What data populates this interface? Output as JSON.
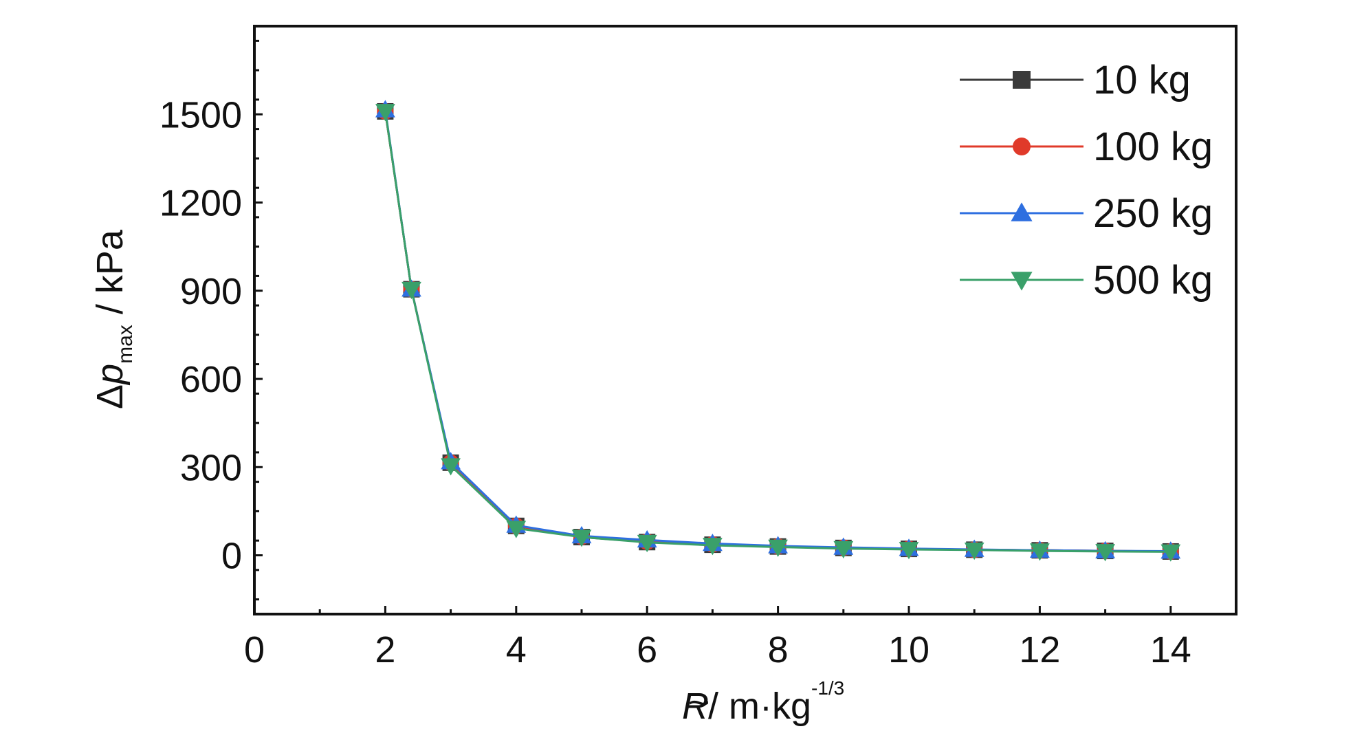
{
  "chart_data": {
    "type": "line",
    "xlabel": {
      "symbol": "R",
      "tilde": "~",
      "text": " / m·kg",
      "sup": "-1/3"
    },
    "ylabel": {
      "delta": "Δ",
      "symbol": "p",
      "sub": "max",
      "text": " / kPa"
    },
    "xlim": [
      0,
      15
    ],
    "ylim": [
      -200,
      1800
    ],
    "xticks": [
      0,
      2,
      4,
      6,
      8,
      10,
      12,
      14
    ],
    "yticks": [
      0,
      300,
      600,
      900,
      1200,
      1500
    ],
    "grid": false,
    "legend_position": "top-right",
    "x": [
      2,
      2.4,
      3,
      4,
      5,
      6,
      7,
      8,
      9,
      10,
      11,
      12,
      13,
      14
    ],
    "series": [
      {
        "name": "10 kg",
        "color": "#3a3a3a",
        "marker": "square",
        "values": [
          1510,
          905,
          315,
          100,
          62,
          45,
          36,
          30,
          25,
          22,
          19,
          17,
          15,
          13
        ]
      },
      {
        "name": "100 kg",
        "color": "#e03a2a",
        "marker": "circle",
        "values": [
          1510,
          905,
          315,
          100,
          63,
          46,
          37,
          30,
          26,
          22,
          19,
          17,
          15,
          13
        ]
      },
      {
        "name": "250 kg",
        "color": "#2e6fe0",
        "marker": "triangle-up",
        "values": [
          1515,
          905,
          318,
          102,
          66,
          52,
          40,
          32,
          27,
          23,
          20,
          17,
          15,
          14
        ]
      },
      {
        "name": "500 kg",
        "color": "#3aa06a",
        "marker": "triangle-down",
        "values": [
          1510,
          905,
          305,
          92,
          62,
          44,
          34,
          28,
          23,
          20,
          18,
          15,
          13,
          12
        ]
      }
    ]
  }
}
